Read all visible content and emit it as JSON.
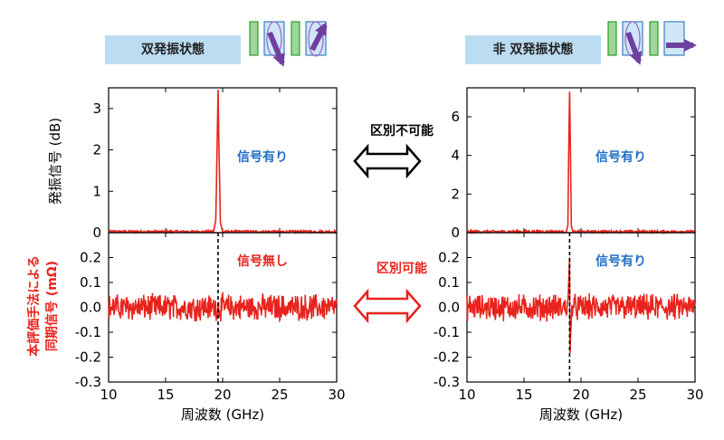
{
  "panels": {
    "left": {
      "state_label": "双発振状態",
      "top_annotation": "信号有り",
      "bottom_annotation": "信号無し"
    },
    "right": {
      "state_label": "非 双発振状態",
      "top_annotation": "信号有り",
      "bottom_annotation": "信号有り"
    }
  },
  "middle": {
    "top_label": "区別不可能",
    "bottom_label": "区別可能"
  },
  "axes": {
    "xlabel": "周波数 (GHz)",
    "ylabel_top": "発振信号 (dB)",
    "ylabel_bottom_line1": "本評価手法による",
    "ylabel_bottom_line2": "同期信号 (mΩ)",
    "x_ticks": [
      "10",
      "15",
      "20",
      "25",
      "30"
    ],
    "left_top_y_ticks": [
      "0",
      "1",
      "2",
      "3"
    ],
    "right_top_y_ticks": [
      "0",
      "2",
      "4",
      "6"
    ],
    "bottom_y_ticks": [
      "0.2",
      "0.1",
      "0.0",
      "-0.1",
      "-0.2",
      "-0.3"
    ]
  },
  "colors": {
    "trace": "#e8231d",
    "label_blue": "#1f6fc5",
    "label_red": "#e8231d",
    "state_box": "#bcdcf2",
    "arrow_purple": "#6f3fa0",
    "layer_green": "#9fd49a"
  },
  "chart_data": [
    {
      "type": "line",
      "title": "",
      "xlabel": "",
      "ylabel": "発振信号 (dB)",
      "xlim": [
        10,
        30
      ],
      "ylim": [
        0,
        3.5
      ],
      "peak": {
        "x": 19.6,
        "y": 3.45
      },
      "series": [
        {
          "x": [
            10,
            19.2,
            19.4,
            19.55,
            19.6,
            19.65,
            19.8,
            20.0,
            30
          ],
          "y": [
            0,
            0.02,
            0.3,
            2.6,
            3.45,
            2.5,
            0.25,
            0.02,
            0
          ]
        }
      ]
    },
    {
      "type": "line",
      "title": "",
      "xlabel": "周波数 (GHz)",
      "ylabel": "同期信号 (mΩ)",
      "xlim": [
        10,
        30
      ],
      "ylim": [
        -0.3,
        0.3
      ],
      "marker_x": 19.6,
      "noise_amplitude": 0.04,
      "series": [
        {
          "x": [
            10,
            30
          ],
          "y": [
            0.0,
            0.0
          ]
        }
      ]
    },
    {
      "type": "line",
      "title": "",
      "xlabel": "",
      "ylabel": "",
      "xlim": [
        10,
        30
      ],
      "ylim": [
        0,
        7.5
      ],
      "peak": {
        "x": 19.0,
        "y": 7.3
      },
      "series": [
        {
          "x": [
            10,
            18.7,
            18.85,
            18.95,
            19.0,
            19.05,
            19.15,
            19.3,
            30
          ],
          "y": [
            0,
            0.02,
            0.4,
            5.5,
            7.3,
            5.3,
            0.35,
            0.02,
            0
          ]
        }
      ]
    },
    {
      "type": "line",
      "title": "",
      "xlabel": "周波数 (GHz)",
      "ylabel": "",
      "xlim": [
        10,
        30
      ],
      "ylim": [
        -0.3,
        0.3
      ],
      "marker_x": 19.0,
      "noise_amplitude": 0.04,
      "feature": {
        "x": 19.0,
        "max": 0.19,
        "min": -0.24
      },
      "series": [
        {
          "x": [
            10,
            30
          ],
          "y": [
            0.0,
            0.0
          ]
        }
      ]
    }
  ]
}
